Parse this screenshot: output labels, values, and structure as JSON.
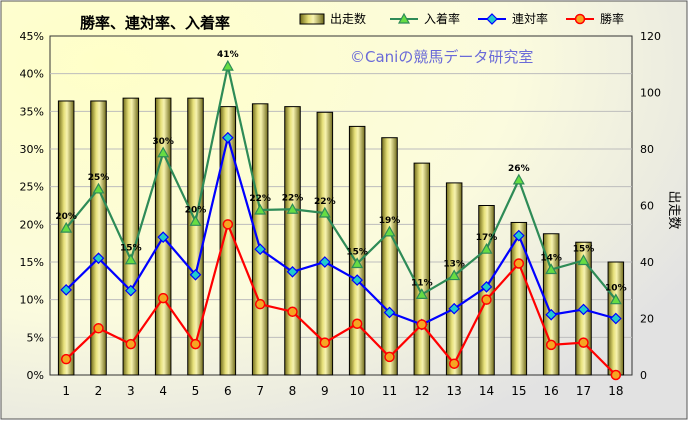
{
  "chart_data": {
    "type": "bar+line",
    "title": "勝率、連対率、入着率",
    "watermark": "©Caniの競馬データ研究室",
    "ylabel_right": "出走数",
    "categories": [
      "1",
      "2",
      "3",
      "4",
      "5",
      "6",
      "7",
      "8",
      "9",
      "10",
      "11",
      "12",
      "13",
      "14",
      "15",
      "16",
      "17",
      "18"
    ],
    "y_left": {
      "min": 0,
      "max": 45,
      "step": 5,
      "tick_labels": [
        "0%",
        "5%",
        "10%",
        "15%",
        "20%",
        "25%",
        "30%",
        "35%",
        "40%",
        "45%"
      ]
    },
    "y_right": {
      "min": 0,
      "max": 120,
      "step": 20,
      "tick_labels": [
        "0",
        "20",
        "40",
        "60",
        "80",
        "100",
        "120"
      ]
    },
    "bars": {
      "name": "出走数",
      "color": "#c8c05a",
      "values": [
        97,
        97,
        98,
        98,
        98,
        95,
        96,
        95,
        93,
        88,
        84,
        75,
        68,
        60,
        54,
        50,
        47,
        40
      ]
    },
    "series": [
      {
        "name": "入着率",
        "color": "#2e8b57",
        "marker": "triangle",
        "values": [
          19.5,
          24.7,
          15.3,
          29.5,
          20.4,
          41.0,
          21.9,
          22.0,
          21.5,
          14.8,
          19.0,
          10.7,
          13.2,
          16.7,
          25.9,
          14.0,
          15.2,
          10.0
        ],
        "labels": [
          "20%",
          "25%",
          "15%",
          "30%",
          "20%",
          "41%",
          "22%",
          "22%",
          "22%",
          "15%",
          "19%",
          "11%",
          "13%",
          "17%",
          "26%",
          "14%",
          "15%",
          "10%"
        ]
      },
      {
        "name": "連対率",
        "color": "#0000ff",
        "marker": "diamond",
        "values": [
          11.3,
          15.5,
          11.2,
          18.3,
          13.3,
          31.5,
          16.7,
          13.7,
          15.0,
          12.6,
          8.3,
          6.7,
          8.8,
          11.7,
          18.5,
          8.0,
          8.7,
          7.5
        ]
      },
      {
        "name": "勝率",
        "color": "#ff0000",
        "marker": "circle",
        "values": [
          2.1,
          6.2,
          4.1,
          10.2,
          4.1,
          20.0,
          9.4,
          8.4,
          4.3,
          6.8,
          2.4,
          6.7,
          1.5,
          10.0,
          14.8,
          4.0,
          4.3,
          0.0
        ]
      }
    ],
    "legend_placement": "top-right",
    "grid": true
  }
}
